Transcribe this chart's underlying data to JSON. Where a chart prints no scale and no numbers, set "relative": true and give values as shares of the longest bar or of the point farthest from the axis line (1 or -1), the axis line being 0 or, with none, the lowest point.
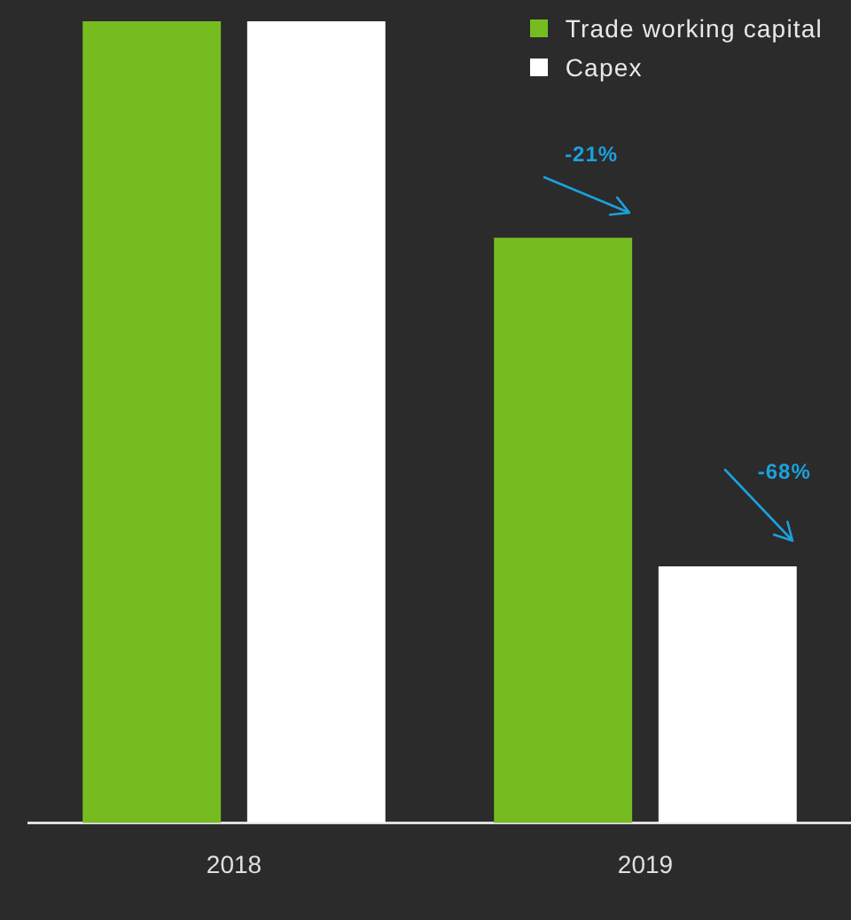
{
  "chart_data": {
    "type": "bar",
    "relative": true,
    "categories": [
      "2018",
      "2019"
    ],
    "series": [
      {
        "name": "Trade working capital",
        "color": "#76bc21",
        "values": [
          1,
          0.73
        ]
      },
      {
        "name": "Capex",
        "color": "#ffffff",
        "values": [
          1,
          0.32
        ]
      }
    ],
    "annotations": [
      "-21%",
      "-68%"
    ],
    "legend": "top right"
  }
}
